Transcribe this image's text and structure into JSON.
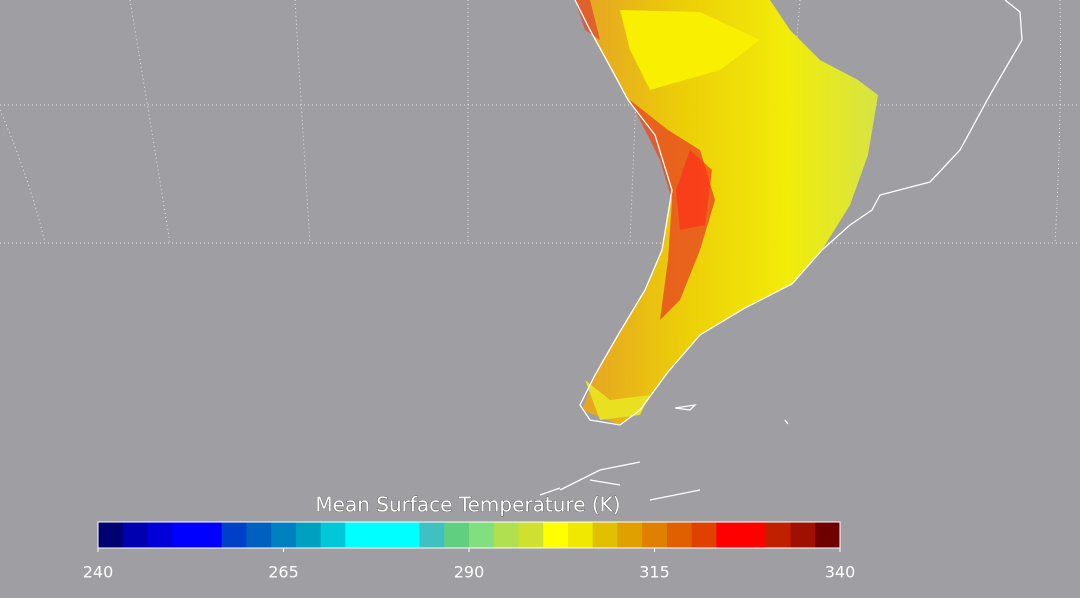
{
  "colorbar": {
    "title": "Mean Surface Temperature (K)",
    "range": [
      240,
      340
    ],
    "ticks": [
      240,
      265,
      290,
      315,
      340
    ],
    "colors": [
      "#000070",
      "#0000b0",
      "#0000d8",
      "#0000ff",
      "#0000ff",
      "#0040c8",
      "#0060c0",
      "#0080c0",
      "#00a0c0",
      "#00c8d8",
      "#00ffff",
      "#00ffff",
      "#00ffff",
      "#40c0c0",
      "#60d080",
      "#80e080",
      "#b0e050",
      "#d0e030",
      "#ffff00",
      "#f0e800",
      "#e0c000",
      "#e0a000",
      "#e08000",
      "#e06000",
      "#e04000",
      "#ff0000",
      "#ff0000",
      "#c02000",
      "#a01000",
      "#700000"
    ]
  }
}
